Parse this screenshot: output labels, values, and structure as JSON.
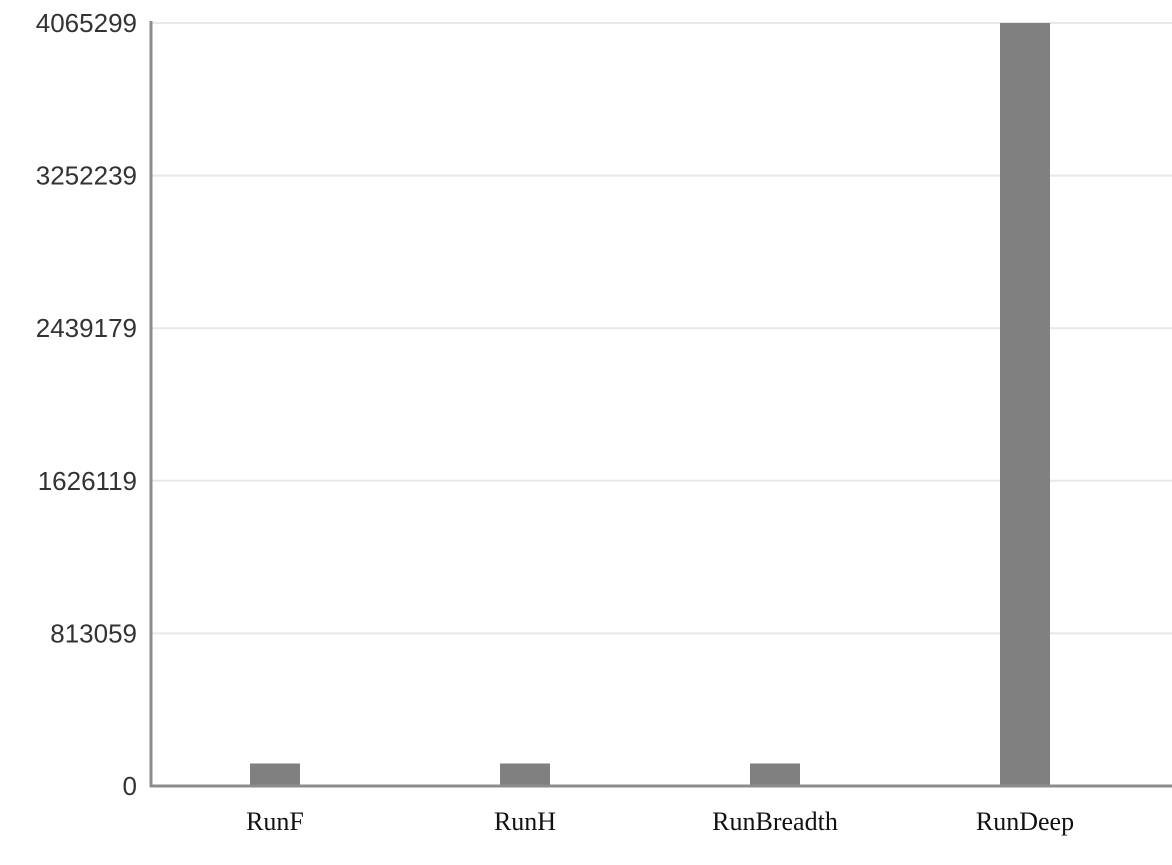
{
  "chart_data": {
    "type": "bar",
    "title": "",
    "xlabel": "",
    "ylabel": "",
    "categories": [
      "RunF",
      "RunH",
      "RunBreadth",
      "RunDeep"
    ],
    "values": [
      120000,
      120000,
      120000,
      4065299
    ],
    "ylim": [
      0,
      4065299
    ],
    "yticks": [
      0,
      813059,
      1626119,
      2439179,
      3252239,
      4065299
    ],
    "ytick_labels": [
      "0",
      "813059",
      "1626119",
      "2439179",
      "3252239",
      "4065299"
    ],
    "bar_color": "#808080",
    "grid_color": "#e8e8e8",
    "axis_color": "#8c8c8c",
    "grid": true,
    "legend": "none"
  }
}
